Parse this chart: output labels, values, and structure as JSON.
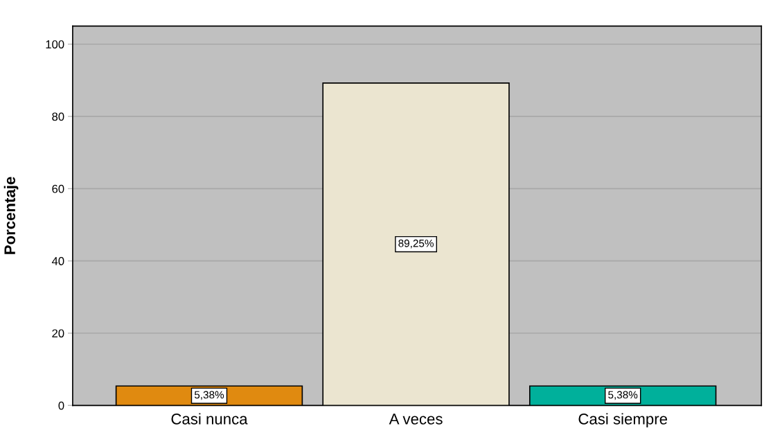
{
  "chart_data": {
    "type": "bar",
    "categories": [
      "Casi nunca",
      "A veces",
      "Casi siempre"
    ],
    "values": [
      5.38,
      89.25,
      5.38
    ],
    "value_labels": [
      "5,38%",
      "89,25%",
      "5,38%"
    ],
    "colors": [
      "#e08a10",
      "#ebe5d0",
      "#00b09b"
    ],
    "ylabel": "Porcentaje",
    "ylim": [
      0,
      105
    ],
    "yticks": [
      0,
      20,
      40,
      60,
      80,
      100
    ],
    "grid": "y",
    "legend": false
  }
}
